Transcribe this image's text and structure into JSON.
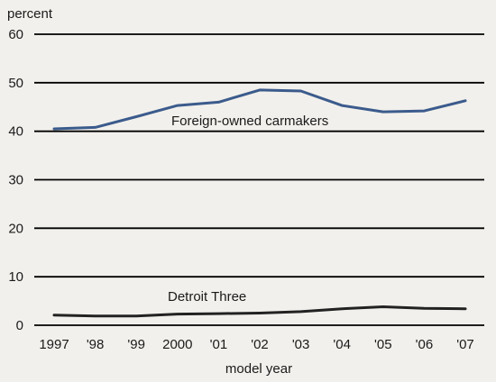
{
  "chart_data": {
    "type": "line",
    "ylabel": "percent",
    "xlabel": "model year",
    "ylim": [
      0,
      60
    ],
    "yticks": [
      0,
      10,
      20,
      30,
      40,
      50,
      60
    ],
    "grid": true,
    "categories": [
      "1997",
      "'98",
      "'99",
      "2000",
      "'01",
      "'02",
      "'03",
      "'04",
      "'05",
      "'06",
      "'07"
    ],
    "series": [
      {
        "name": "Foreign-owned carmakers",
        "color": "#3b5b8c",
        "values": [
          40.5,
          40.8,
          43.0,
          45.3,
          46.0,
          48.5,
          48.3,
          45.3,
          44.0,
          44.2,
          46.3
        ]
      },
      {
        "name": "Detroit Three",
        "color": "#222222",
        "values": [
          2.1,
          1.9,
          1.9,
          2.3,
          2.4,
          2.5,
          2.8,
          3.4,
          3.8,
          3.5,
          3.4
        ]
      }
    ]
  }
}
